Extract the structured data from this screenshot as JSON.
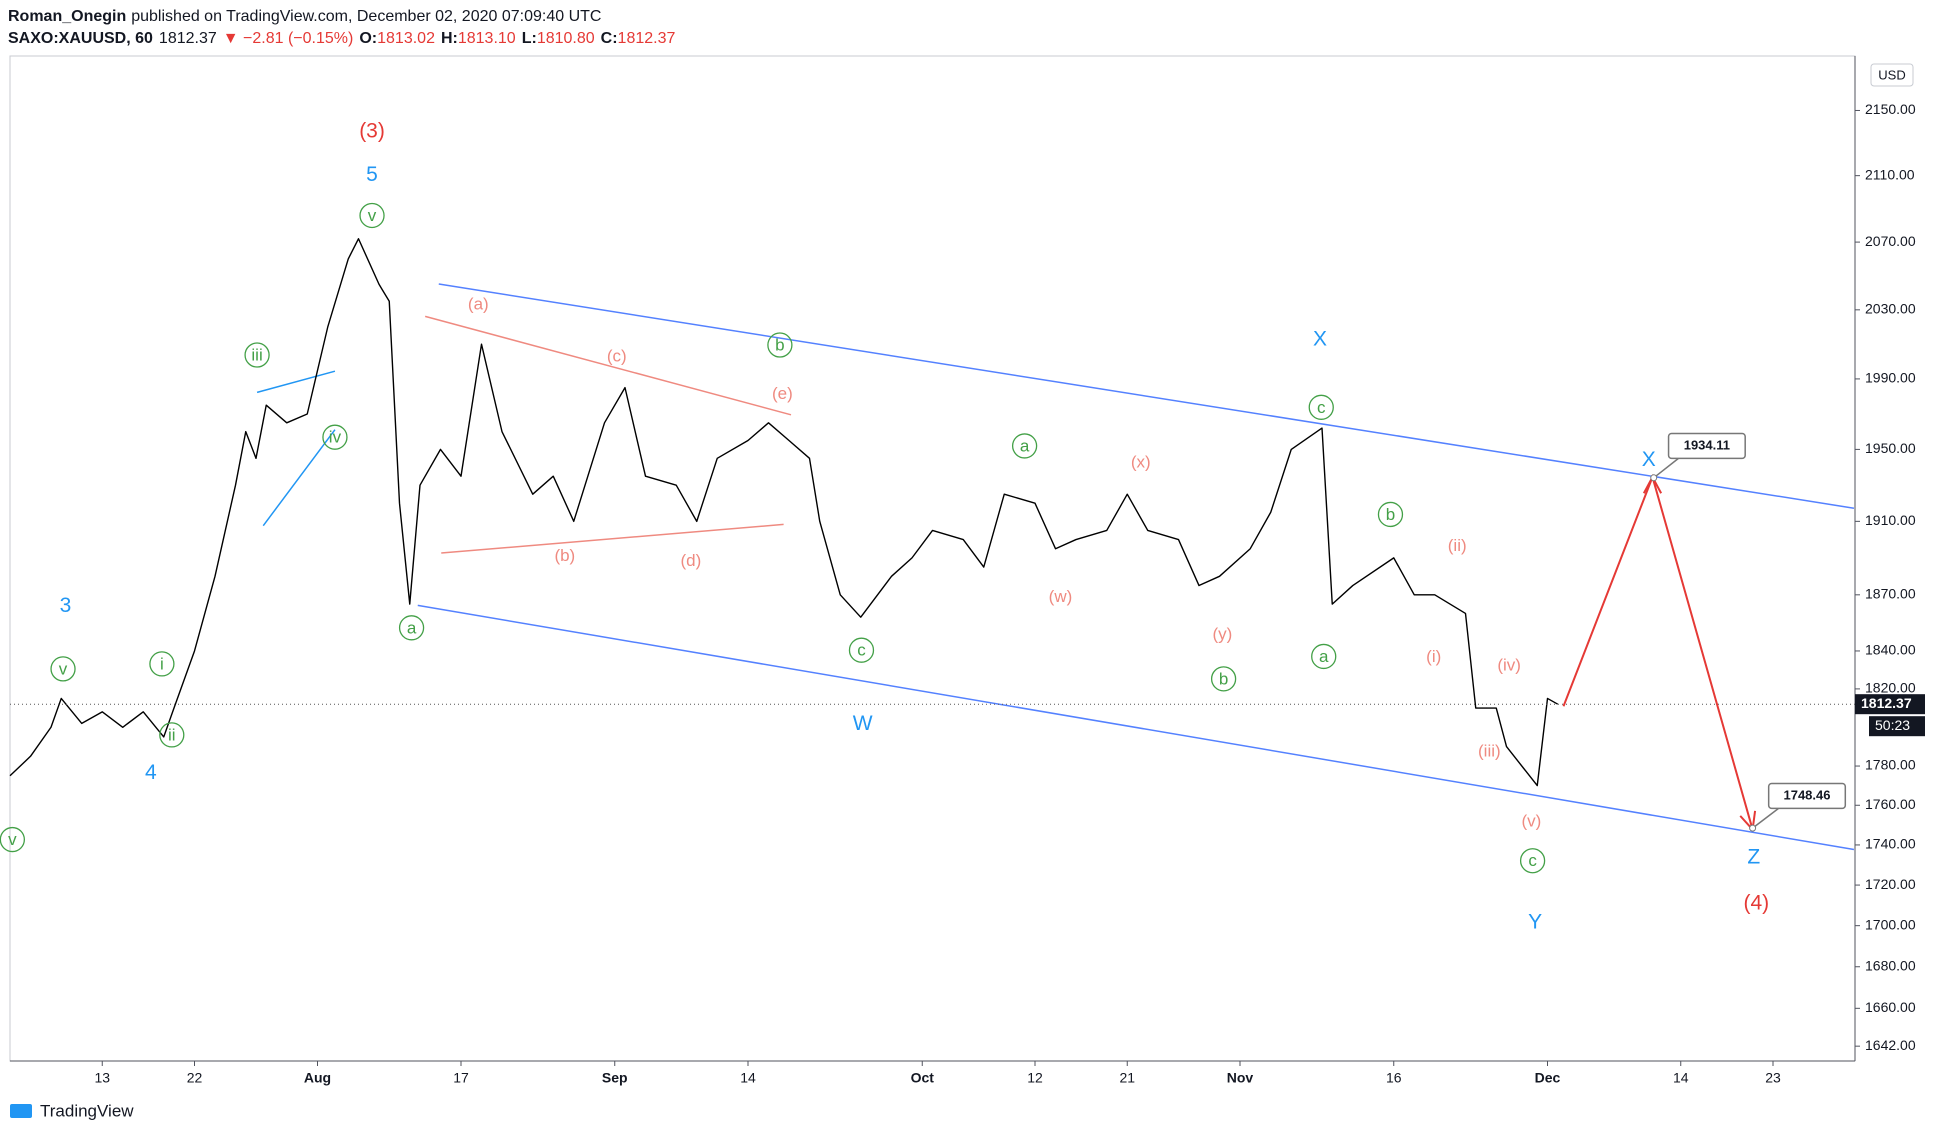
{
  "chart_data": {
    "type": "line",
    "header": {
      "author": "Roman_Onegin",
      "published": "published on TradingView.com, December 02, 2020 07:09:40 UTC",
      "symbol": "SAXO:XAUUSD, 60",
      "last": "1812.37",
      "change": "▼ −2.81 (−0.15%)",
      "open_label": "O:",
      "open": "1813.02",
      "high_label": "H:",
      "high": "1813.10",
      "low_label": "L:",
      "low": "1810.80",
      "close_label": "C:",
      "close": "1812.37"
    },
    "currency": "USD",
    "current_price": "1812.37",
    "countdown": "50:23",
    "footer": "TradingView",
    "color": "#000000",
    "log_scale": true,
    "x": [
      "2020-07-04",
      "2020-07-06",
      "2020-07-08",
      "2020-07-09",
      "2020-07-11",
      "2020-07-13",
      "2020-07-15",
      "2020-07-17",
      "2020-07-19",
      "2020-07-20",
      "2020-07-22",
      "2020-07-24",
      "2020-07-26",
      "2020-07-27",
      "2020-07-28",
      "2020-07-29",
      "2020-07-31",
      "2020-08-02",
      "2020-08-04",
      "2020-08-06",
      "2020-08-07",
      "2020-08-09",
      "2020-08-10",
      "2020-08-11",
      "2020-08-12",
      "2020-08-13",
      "2020-08-15",
      "2020-08-17",
      "2020-08-19",
      "2020-08-21",
      "2020-08-24",
      "2020-08-26",
      "2020-08-28",
      "2020-08-31",
      "2020-09-02",
      "2020-09-04",
      "2020-09-07",
      "2020-09-09",
      "2020-09-11",
      "2020-09-14",
      "2020-09-16",
      "2020-09-18",
      "2020-09-20",
      "2020-09-21",
      "2020-09-23",
      "2020-09-25",
      "2020-09-28",
      "2020-09-30",
      "2020-10-02",
      "2020-10-05",
      "2020-10-07",
      "2020-10-09",
      "2020-10-12",
      "2020-10-14",
      "2020-10-16",
      "2020-10-19",
      "2020-10-21",
      "2020-10-23",
      "2020-10-26",
      "2020-10-28",
      "2020-10-30",
      "2020-11-02",
      "2020-11-04",
      "2020-11-06",
      "2020-11-09",
      "2020-11-10",
      "2020-11-12",
      "2020-11-16",
      "2020-11-18",
      "2020-11-20",
      "2020-11-23",
      "2020-11-24",
      "2020-11-26",
      "2020-11-27",
      "2020-11-30",
      "2020-12-01",
      "2020-12-02"
    ],
    "values": [
      1775,
      1785,
      1800,
      1815,
      1802,
      1808,
      1800,
      1808,
      1795,
      1810,
      1840,
      1880,
      1930,
      1960,
      1945,
      1975,
      1965,
      1970,
      2020,
      2060,
      2072,
      2045,
      2035,
      1920,
      1865,
      1930,
      1950,
      1935,
      2010,
      1960,
      1925,
      1935,
      1910,
      1965,
      1985,
      1935,
      1930,
      1910,
      1945,
      1955,
      1965,
      1955,
      1945,
      1910,
      1870,
      1858,
      1880,
      1890,
      1905,
      1900,
      1885,
      1925,
      1920,
      1895,
      1900,
      1905,
      1925,
      1905,
      1900,
      1875,
      1880,
      1895,
      1915,
      1950,
      1962,
      1865,
      1875,
      1890,
      1870,
      1870,
      1860,
      1810,
      1810,
      1790,
      1770,
      1815,
      1812
    ],
    "xlim": [
      "2020-07-04",
      "2020-12-31"
    ],
    "xticks": [
      {
        "value": "2020-07-13",
        "label": "13"
      },
      {
        "value": "2020-07-22",
        "label": "22"
      },
      {
        "value": "2020-08-03",
        "label": "Aug"
      },
      {
        "value": "2020-08-17",
        "label": "17"
      },
      {
        "value": "2020-09-01",
        "label": "Sep"
      },
      {
        "value": "2020-09-14",
        "label": "14"
      },
      {
        "value": "2020-10-01",
        "label": "Oct"
      },
      {
        "value": "2020-10-12",
        "label": "12"
      },
      {
        "value": "2020-10-21",
        "label": "21"
      },
      {
        "value": "2020-11-01",
        "label": "Nov"
      },
      {
        "value": "2020-11-16",
        "label": "16"
      },
      {
        "value": "2020-12-01",
        "label": "Dec"
      },
      {
        "value": "2020-12-14",
        "label": "14"
      },
      {
        "value": "2020-12-23",
        "label": "23"
      }
    ],
    "ylim": [
      1635,
      2184
    ],
    "yticks": [
      {
        "value": 2150,
        "label": "2150.00"
      },
      {
        "value": 2110,
        "label": "2110.00"
      },
      {
        "value": 2070,
        "label": "2070.00"
      },
      {
        "value": 2030,
        "label": "2030.00"
      },
      {
        "value": 1990,
        "label": "1990.00"
      },
      {
        "value": 1950,
        "label": "1950.00"
      },
      {
        "value": 1910,
        "label": "1910.00"
      },
      {
        "value": 1870,
        "label": "1870.00"
      },
      {
        "value": 1840,
        "label": "1840.00"
      },
      {
        "value": 1820,
        "label": "1820.00"
      },
      {
        "value": 1780,
        "label": "1780.00"
      },
      {
        "value": 1760,
        "label": "1760.00"
      },
      {
        "value": 1740,
        "label": "1740.00"
      },
      {
        "value": 1720,
        "label": "1720.00"
      },
      {
        "value": 1700,
        "label": "1700.00"
      },
      {
        "value": 1680,
        "label": "1680.00"
      },
      {
        "value": 1660,
        "label": "1660.00"
      },
      {
        "value": 1642,
        "label": "1642.00"
      }
    ],
    "target_labels": [
      {
        "value": 1934.11,
        "label": "1934.11"
      },
      {
        "value": 1748.46,
        "label": "1748.46"
      }
    ],
    "annotations": [
      {
        "text": "(3)",
        "color": "#e53935"
      },
      {
        "text": "5",
        "color": "#2196f3"
      },
      {
        "text": "v",
        "color": "#43a047",
        "circled": true
      },
      {
        "text": "iii",
        "color": "#43a047",
        "circled": true
      },
      {
        "text": "iv",
        "color": "#43a047",
        "circled": true
      },
      {
        "text": "3",
        "color": "#2196f3"
      },
      {
        "text": "v",
        "color": "#43a047",
        "circled": true
      },
      {
        "text": "i",
        "color": "#43a047",
        "circled": true
      },
      {
        "text": "ii",
        "color": "#43a047",
        "circled": true
      },
      {
        "text": "4",
        "color": "#2196f3"
      },
      {
        "text": "v",
        "color": "#43a047",
        "circled": true
      },
      {
        "text": "a",
        "color": "#43a047",
        "circled": true
      },
      {
        "text": "(a)",
        "color": "#ef8a80"
      },
      {
        "text": "(c)",
        "color": "#ef8a80"
      },
      {
        "text": "(e)",
        "color": "#ef8a80"
      },
      {
        "text": "b",
        "color": "#43a047",
        "circled": true
      },
      {
        "text": "(b)",
        "color": "#ef8a80"
      },
      {
        "text": "(d)",
        "color": "#ef8a80"
      },
      {
        "text": "c",
        "color": "#43a047",
        "circled": true
      },
      {
        "text": "W",
        "color": "#2196f3"
      },
      {
        "text": "a",
        "color": "#43a047",
        "circled": true
      },
      {
        "text": "(x)",
        "color": "#ef8a80"
      },
      {
        "text": "(w)",
        "color": "#ef8a80"
      },
      {
        "text": "(y)",
        "color": "#ef8a80"
      },
      {
        "text": "b",
        "color": "#43a047",
        "circled": true
      },
      {
        "text": "X",
        "color": "#2196f3"
      },
      {
        "text": "c",
        "color": "#43a047",
        "circled": true
      },
      {
        "text": "a",
        "color": "#43a047",
        "circled": true
      },
      {
        "text": "b",
        "color": "#43a047",
        "circled": true
      },
      {
        "text": "(ii)",
        "color": "#ef8a80"
      },
      {
        "text": "(i)",
        "color": "#ef8a80"
      },
      {
        "text": "(iv)",
        "color": "#ef8a80"
      },
      {
        "text": "(iii)",
        "color": "#ef8a80"
      },
      {
        "text": "(v)",
        "color": "#ef8a80"
      },
      {
        "text": "c",
        "color": "#43a047",
        "circled": true
      },
      {
        "text": "Y",
        "color": "#2196f3"
      },
      {
        "text": "X",
        "color": "#2196f3"
      },
      {
        "text": "Z",
        "color": "#2196f3"
      },
      {
        "text": "(4)",
        "color": "#e53935"
      }
    ]
  }
}
